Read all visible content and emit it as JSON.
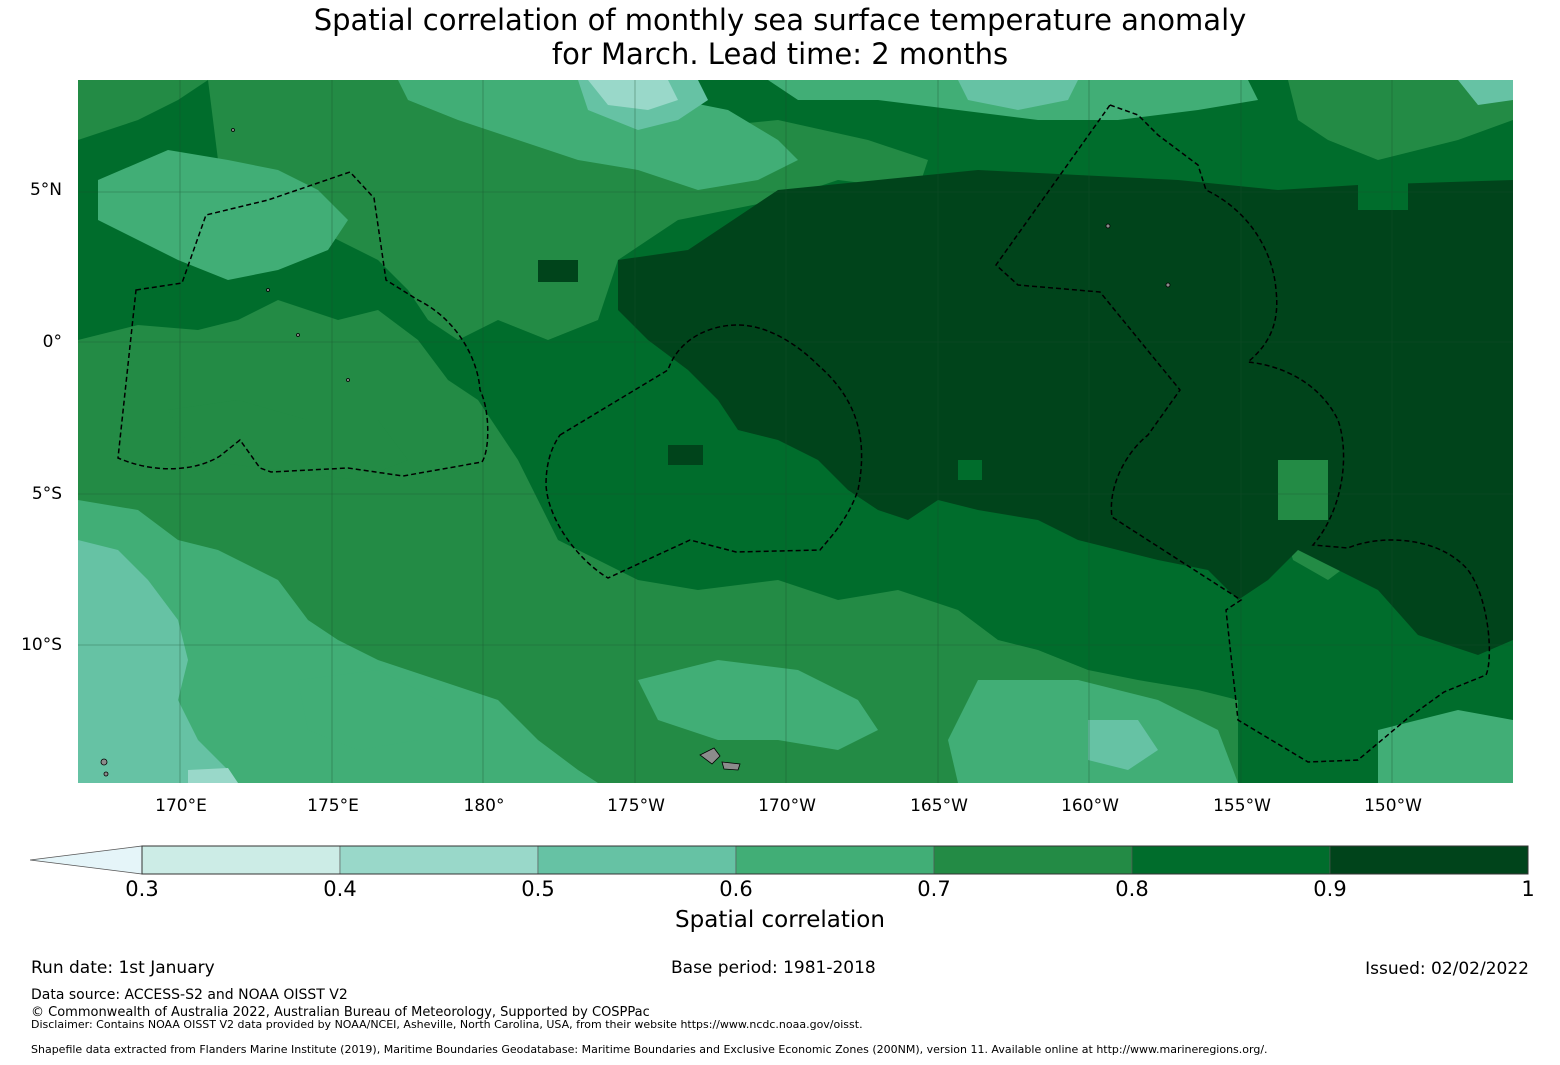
{
  "title": {
    "line1": "Spatial correlation of monthly sea surface temperature anomaly",
    "line2": "for March. Lead time: 2 months"
  },
  "map": {
    "lat_ticks": [
      "5°N",
      "0°",
      "5°S",
      "10°S"
    ],
    "lon_ticks": [
      "170°E",
      "175°E",
      "180°",
      "175°W",
      "170°W",
      "165°W",
      "160°W",
      "155°W",
      "150°W"
    ],
    "gridline_color": "#1a4d2e",
    "boundary_style": "dashed-black",
    "land_color": "#8c8c8c"
  },
  "colorbar": {
    "label": "Spatial correlation",
    "ticks": [
      "0.3",
      "0.4",
      "0.5",
      "0.6",
      "0.7",
      "0.8",
      "0.9",
      "1"
    ],
    "below_color": "#e5f5f9",
    "bins": [
      {
        "from": 0.3,
        "to": 0.4,
        "color": "#ccece6"
      },
      {
        "from": 0.4,
        "to": 0.5,
        "color": "#99d8c9"
      },
      {
        "from": 0.5,
        "to": 0.6,
        "color": "#66c2a4"
      },
      {
        "from": 0.6,
        "to": 0.7,
        "color": "#41ae76"
      },
      {
        "from": 0.7,
        "to": 0.8,
        "color": "#238b45"
      },
      {
        "from": 0.8,
        "to": 0.9,
        "color": "#006d2c"
      },
      {
        "from": 0.9,
        "to": 1.0,
        "color": "#00441b"
      }
    ]
  },
  "footer": {
    "run_date": "Run date: 1st January",
    "base_period": "Base period: 1981-2018",
    "issued": "Issued: 02/02/2022",
    "data_source": "Data source: ACCESS-S2 and NOAA OISST V2",
    "copyright": "© Commonwealth of Australia 2022, Australian Bureau of Meteorology, Supported by COSPPac",
    "disclaimer": "Disclaimer: Contains NOAA OISST V2 data provided by NOAA/NCEI, Asheville, North Carolina, USA, from their website https://www.ncdc.noaa.gov/oisst.",
    "shapefile": "Shapefile data extracted from Flanders Marine Institute (2019), Maritime Boundaries Geodatabase: Maritime Boundaries and Exclusive Economic Zones (200NM), version 11. Available online at http://www.marineregions.org/."
  }
}
